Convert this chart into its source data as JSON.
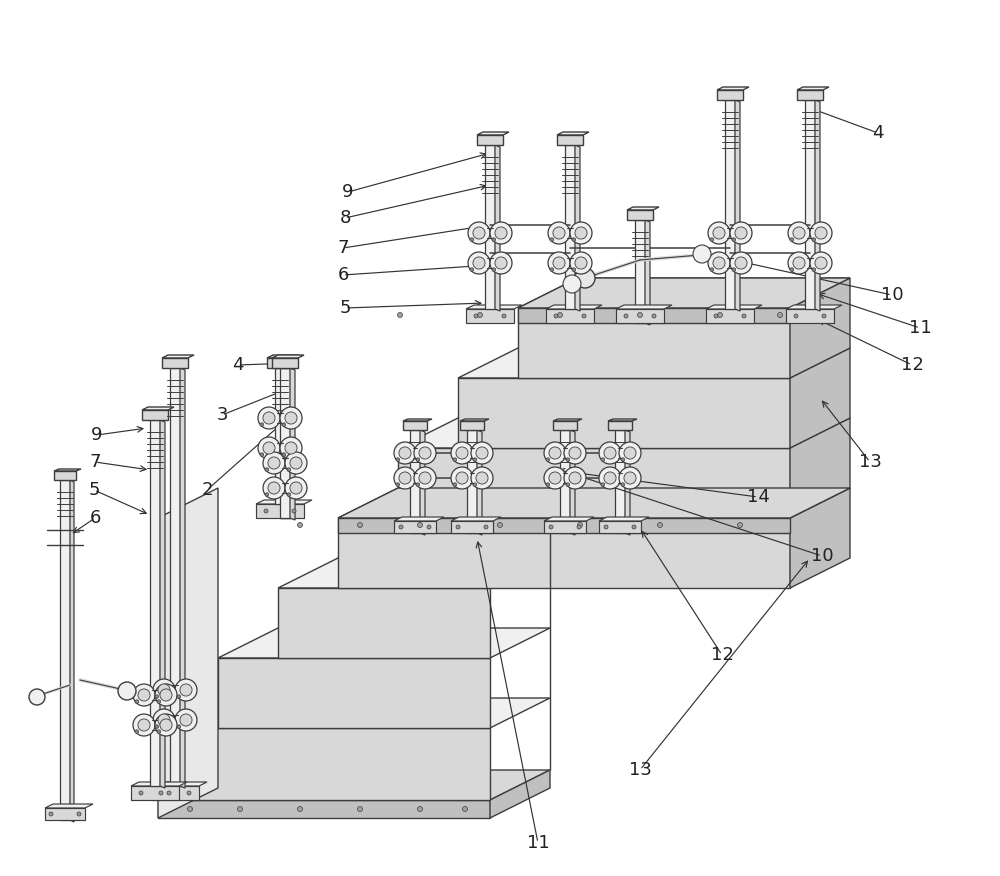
{
  "bg": "#ffffff",
  "lc": "#3d3d3d",
  "fl": "#f0f0f0",
  "fm": "#d8d8d8",
  "fd": "#c0c0c0",
  "lw": 1.0,
  "fs": 13,
  "ac": "#333333"
}
